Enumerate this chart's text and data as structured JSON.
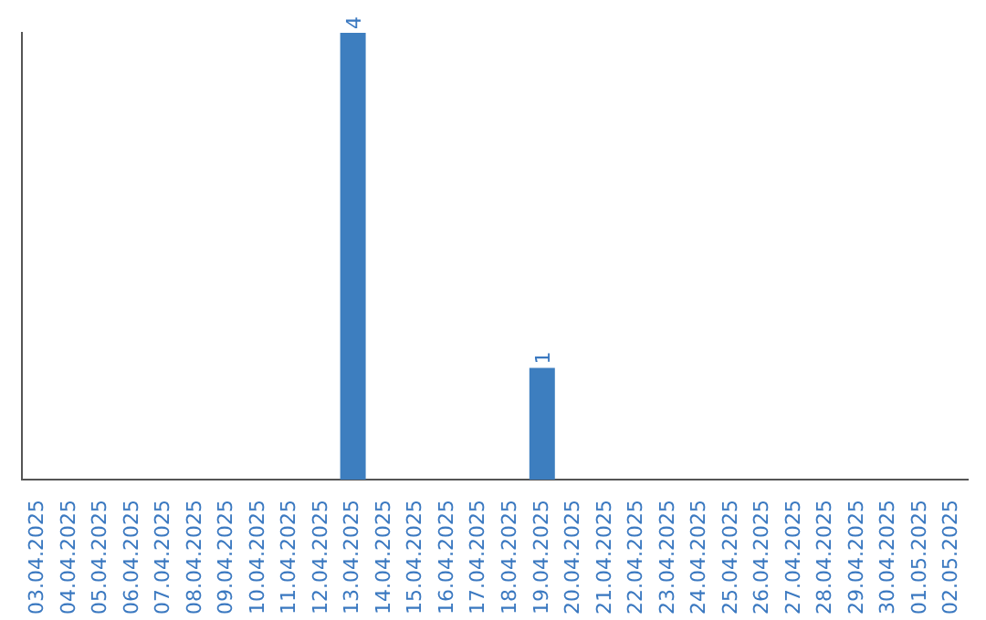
{
  "chart_data": {
    "type": "bar",
    "categories": [
      "03.04.2025",
      "04.04.2025",
      "05.04.2025",
      "06.04.2025",
      "07.04.2025",
      "08.04.2025",
      "09.04.2025",
      "10.04.2025",
      "11.04.2025",
      "12.04.2025",
      "13.04.2025",
      "14.04.2025",
      "15.04.2025",
      "16.04.2025",
      "17.04.2025",
      "18.04.2025",
      "19.04.2025",
      "20.04.2025",
      "21.04.2025",
      "22.04.2025",
      "23.04.2025",
      "24.04.2025",
      "25.04.2025",
      "26.04.2025",
      "27.04.2025",
      "28.04.2025",
      "29.04.2025",
      "30.04.2025",
      "01.05.2025",
      "02.05.2025"
    ],
    "values": [
      0,
      0,
      0,
      0,
      0,
      0,
      0,
      0,
      0,
      0,
      4,
      0,
      0,
      0,
      0,
      0,
      1,
      0,
      0,
      0,
      0,
      0,
      0,
      0,
      0,
      0,
      0,
      0,
      0,
      0
    ],
    "value_labels": [
      null,
      null,
      null,
      null,
      null,
      null,
      null,
      null,
      null,
      null,
      "4",
      null,
      null,
      null,
      null,
      null,
      "1",
      null,
      null,
      null,
      null,
      null,
      null,
      null,
      null,
      null,
      null,
      null,
      null,
      null
    ],
    "color": "#3d7ebf",
    "grid": false,
    "legend": false,
    "tick_labels": "x"
  }
}
